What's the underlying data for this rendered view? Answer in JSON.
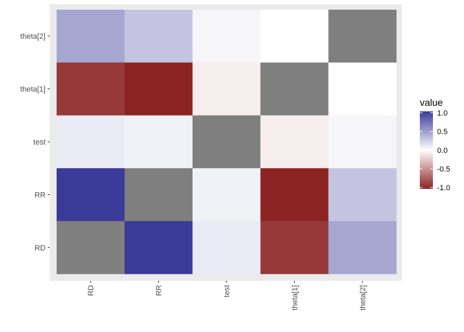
{
  "chart_data": {
    "type": "heatmap",
    "title": "",
    "xlabel": "",
    "ylabel": "",
    "x_categories": [
      "RD",
      "RR",
      "test",
      "theta[1]",
      "theta[2]"
    ],
    "y_categories": [
      "RD",
      "RR",
      "test",
      "theta[1]",
      "theta[2]"
    ],
    "rows": [
      {
        "y": "theta[2]",
        "values": [
          0.45,
          0.3,
          0.05,
          0.0,
          null
        ]
      },
      {
        "y": "theta[1]",
        "values": [
          -0.9,
          -1.0,
          -0.08,
          null,
          0.0
        ]
      },
      {
        "y": "test",
        "values": [
          0.1,
          0.07,
          null,
          -0.08,
          0.05
        ]
      },
      {
        "y": "RR",
        "values": [
          1.0,
          null,
          0.07,
          -1.0,
          0.3
        ]
      },
      {
        "y": "RD",
        "values": [
          null,
          1.0,
          0.1,
          -0.9,
          0.45
        ]
      }
    ],
    "missing_color": "#7f7f7f",
    "legend": {
      "title": "value",
      "position": "right",
      "breaks": [
        1.0,
        0.5,
        0.0,
        -0.5,
        -1.0
      ],
      "break_labels": [
        "1.0",
        "0.5",
        "0.0",
        "-0.5",
        "-1.0"
      ],
      "limits": [
        -1.0,
        1.0
      ],
      "colors": {
        "low": "#8b2323",
        "mid": "#ffffff",
        "high": "#3a3a98"
      }
    },
    "panel_background": "#ebebeb"
  }
}
